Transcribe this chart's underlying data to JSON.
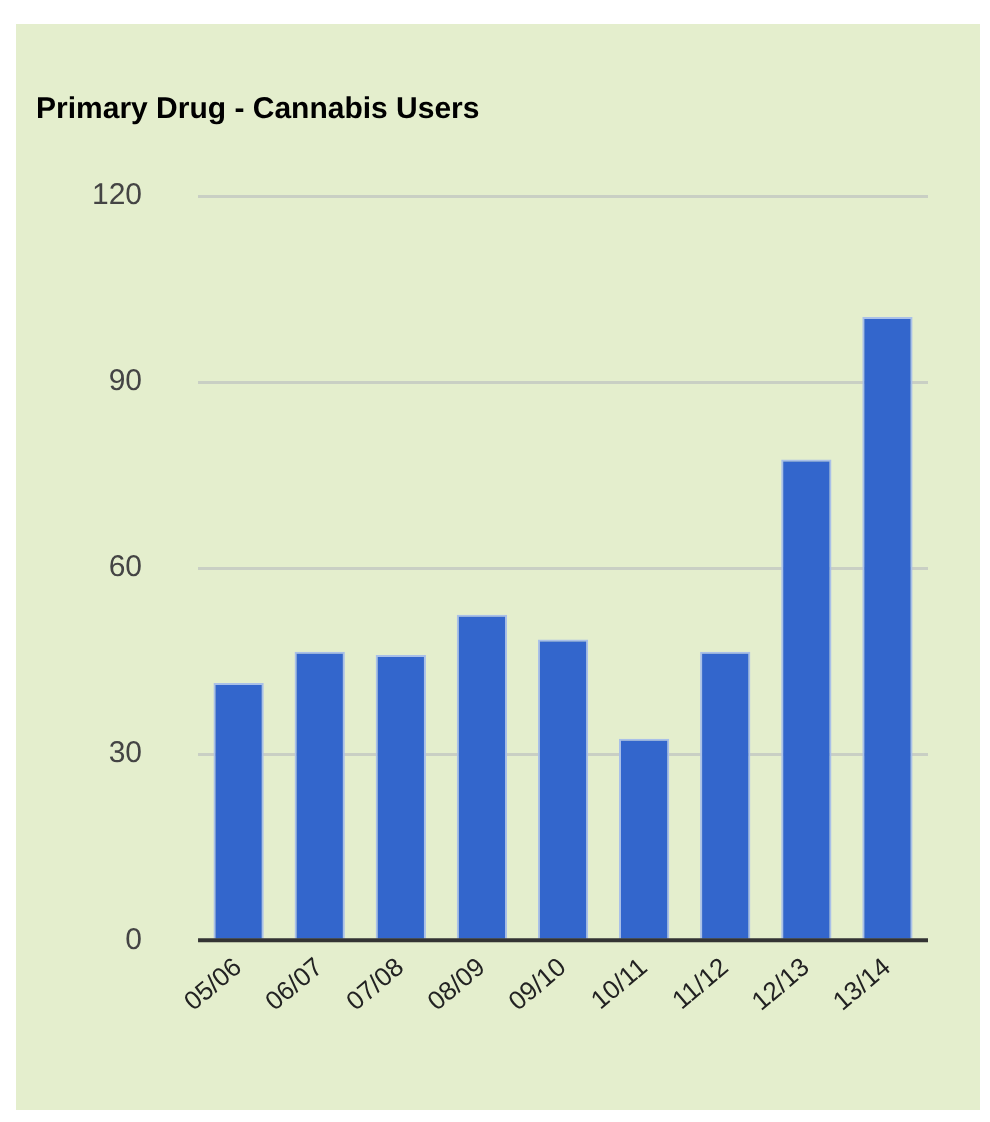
{
  "chart_data": {
    "type": "bar",
    "title": "Primary Drug - Cannabis Users",
    "categories": [
      "05/06",
      "06/07",
      "07/08",
      "08/09",
      "09/10",
      "10/11",
      "11/12",
      "12/13",
      "13/14"
    ],
    "values": [
      41.5,
      46.5,
      46,
      52.5,
      48.5,
      32.5,
      46.5,
      77.5,
      100.5
    ],
    "color": "#3366cc",
    "ylim": [
      0,
      120
    ],
    "yticks": [
      0,
      30,
      60,
      90,
      120
    ],
    "grid": "y",
    "legend": false
  }
}
